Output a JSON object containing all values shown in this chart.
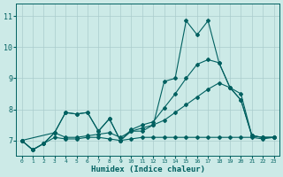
{
  "xlabel": "Humidex (Indice chaleur)",
  "xlim": [
    -0.5,
    23.5
  ],
  "ylim": [
    6.5,
    11.4
  ],
  "yticks": [
    7,
    8,
    9,
    10,
    11
  ],
  "xticks": [
    0,
    1,
    2,
    3,
    4,
    5,
    6,
    7,
    8,
    9,
    10,
    11,
    12,
    13,
    14,
    15,
    16,
    17,
    18,
    19,
    20,
    21,
    22,
    23
  ],
  "bg_color": "#cceae7",
  "line_color": "#006060",
  "grid_color": "#aacccc",
  "lines": [
    {
      "x": [
        0,
        1,
        2,
        3,
        4,
        5,
        6,
        7,
        8,
        9,
        10,
        11,
        12,
        13,
        14,
        15,
        16,
        17,
        18,
        19,
        20,
        21,
        22,
        23
      ],
      "y": [
        7.0,
        6.7,
        6.9,
        7.25,
        7.9,
        7.85,
        7.9,
        7.3,
        7.7,
        7.0,
        7.3,
        7.3,
        7.5,
        8.9,
        9.0,
        10.85,
        10.4,
        10.85,
        9.5,
        8.7,
        8.3,
        7.15,
        7.1,
        7.1
      ]
    },
    {
      "x": [
        0,
        1,
        2,
        3,
        4,
        5,
        6,
        7,
        8,
        9,
        10,
        11,
        12,
        13,
        14,
        15,
        16,
        17,
        18,
        19,
        20,
        21,
        22,
        23
      ],
      "y": [
        7.0,
        6.7,
        6.9,
        7.25,
        7.1,
        7.1,
        7.15,
        7.2,
        7.25,
        7.1,
        7.3,
        7.4,
        7.5,
        7.65,
        7.9,
        8.15,
        8.4,
        8.65,
        8.85,
        8.7,
        8.5,
        7.15,
        7.1,
        7.1
      ]
    },
    {
      "x": [
        0,
        3,
        4,
        5,
        6,
        7,
        8,
        9,
        10,
        11,
        12,
        13,
        14,
        15,
        16,
        17,
        18,
        19,
        20,
        21,
        22,
        23
      ],
      "y": [
        7.0,
        7.25,
        7.9,
        7.85,
        7.9,
        7.3,
        7.7,
        7.0,
        7.35,
        7.5,
        7.6,
        8.05,
        8.5,
        9.0,
        9.45,
        9.6,
        9.5,
        8.7,
        8.3,
        7.15,
        7.1,
        7.1
      ]
    },
    {
      "x": [
        0,
        1,
        2,
        3,
        4,
        5,
        6,
        7,
        8,
        9,
        10,
        11,
        12,
        13,
        14,
        15,
        16,
        17,
        18,
        19,
        20,
        21,
        22,
        23
      ],
      "y": [
        7.0,
        6.7,
        6.9,
        7.1,
        7.05,
        7.05,
        7.1,
        7.1,
        7.05,
        7.0,
        7.05,
        7.1,
        7.1,
        7.1,
        7.1,
        7.1,
        7.1,
        7.1,
        7.1,
        7.1,
        7.1,
        7.1,
        7.05,
        7.1
      ]
    }
  ]
}
